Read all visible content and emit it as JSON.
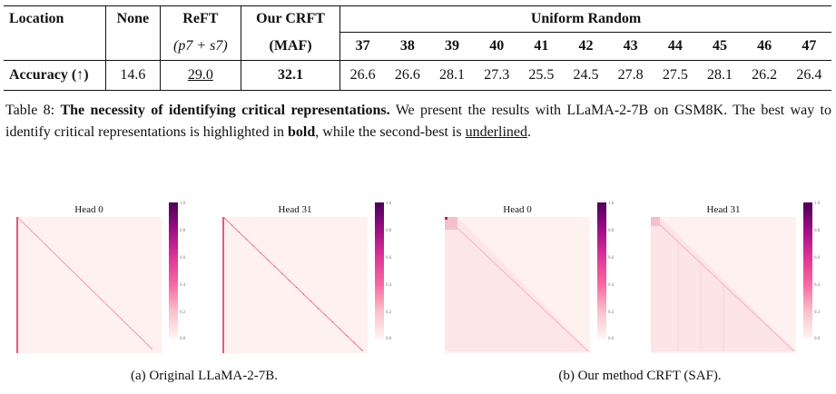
{
  "table": {
    "header_row1": {
      "location": "Location",
      "none": "None",
      "reft": "ReFT",
      "crft": "Our CRFT",
      "uniform": "Uniform Random"
    },
    "header_row2": {
      "reft_sub": "(p7 + s7)",
      "crft_sub": "(MAF)",
      "uniform_cols": [
        "37",
        "38",
        "39",
        "40",
        "41",
        "42",
        "43",
        "44",
        "45",
        "46",
        "47"
      ]
    },
    "row": {
      "label": "Accuracy (↑)",
      "none": "14.6",
      "reft": "29.0",
      "crft": "32.1",
      "uniform_vals": [
        "26.6",
        "26.6",
        "28.1",
        "27.3",
        "25.5",
        "24.5",
        "27.8",
        "27.5",
        "28.1",
        "26.2",
        "26.4"
      ]
    }
  },
  "caption": {
    "label": "Table 8: ",
    "bold_lead": "The necessity of identifying critical representations.",
    "text_1": " We present the results with LLaMA-2-7B on GSM8K. The best way to identify critical representations is highlighted in ",
    "bold_word": "bold",
    "text_2": ", while the second-best is ",
    "underline_word": "underlined",
    "text_3": "."
  },
  "figure": {
    "panels": [
      {
        "title": "Head 0"
      },
      {
        "title": "Head 31"
      },
      {
        "title": "Head 0"
      },
      {
        "title": "Head 31"
      }
    ],
    "colorbar_ticks": [
      "1.0",
      "0.8",
      "0.6",
      "0.4",
      "0.2",
      "0.0"
    ],
    "subcaption_a": "(a) Original LLaMA-2-7B.",
    "subcaption_b": "(b) Our method CRFT (SAF)."
  }
}
